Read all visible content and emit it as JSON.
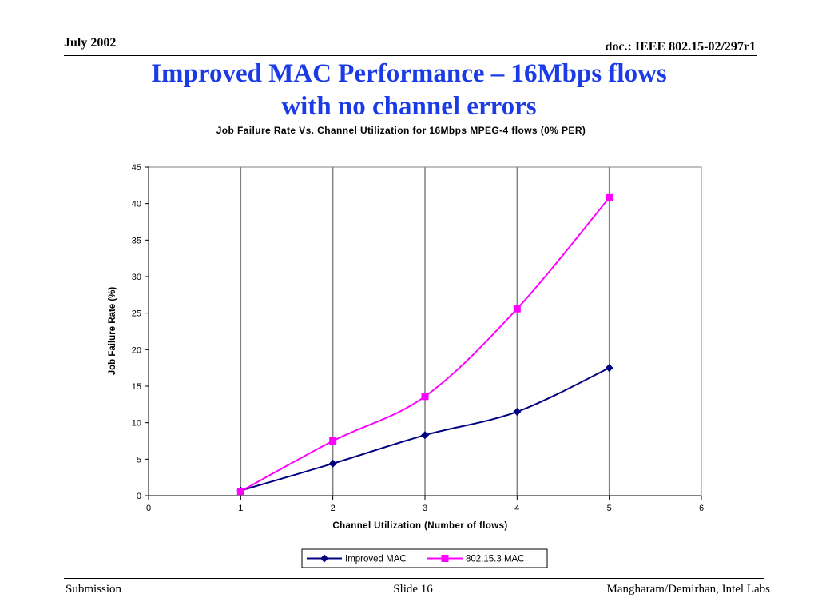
{
  "header": {
    "date": "July 2002",
    "doc_id": "doc.: IEEE 802.15-02/297r1"
  },
  "slide": {
    "title_line1": "Improved MAC Performance – 16Mbps flows",
    "title_line2": "with no channel errors"
  },
  "chart_data": {
    "type": "line",
    "title": "Job Failure Rate Vs. Channel Utilization for 16Mbps MPEG-4 flows (0% PER)",
    "xlabel": "Channel Utilization (Number of flows)",
    "ylabel": "Job Failure Rate (%)",
    "xlim": [
      0,
      6
    ],
    "ylim": [
      0,
      45
    ],
    "xticks": [
      0,
      1,
      2,
      3,
      4,
      5,
      6
    ],
    "yticks": [
      0,
      5,
      10,
      15,
      20,
      25,
      30,
      35,
      40,
      45
    ],
    "grid": "vertical",
    "legend_position": "bottom",
    "series": [
      {
        "name": "Improved MAC",
        "color": "#000080",
        "marker": "diamond",
        "x": [
          1,
          2,
          3,
          4,
          5
        ],
        "y": [
          0.7,
          4.4,
          8.3,
          11.5,
          17.5
        ]
      },
      {
        "name": "802.15.3 MAC",
        "color": "#ff00ff",
        "marker": "square",
        "x": [
          1,
          2,
          3,
          4,
          5
        ],
        "y": [
          0.6,
          7.5,
          13.6,
          25.6,
          40.8
        ]
      }
    ]
  },
  "footer": {
    "left": "Submission",
    "center": "Slide 16",
    "right": "Mangharam/Demirhan, Intel Labs"
  }
}
